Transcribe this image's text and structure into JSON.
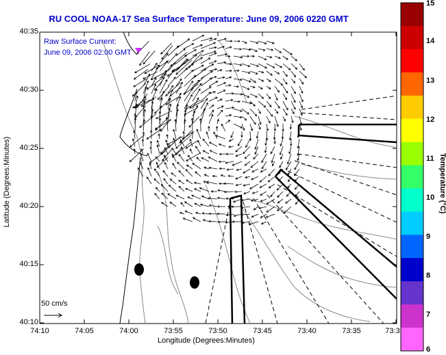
{
  "title": "RU COOL  NOAA-17  Sea Surface Temperature:  June 09, 2006 0220 GMT",
  "legend": {
    "line1": "Raw Surface Current:",
    "line2": "June 09, 2006 02:00 GMT",
    "marker_color": "#cc33ff"
  },
  "scale": {
    "label": "50 cm/s"
  },
  "axes": {
    "xlabel": "Longitude (Degrees:Minutes)",
    "ylabel": "Latitude (Degrees:Minutes)",
    "xticks": [
      "74:10",
      "74:05",
      "74:00",
      "73:55",
      "73:50",
      "73:45",
      "73:40",
      "73:35",
      "73:3"
    ],
    "yticks": [
      "40:35",
      "40:30",
      "40:25",
      "40:20",
      "40:15",
      "40:10"
    ]
  },
  "colorbar": {
    "label": "Temperature (°C)",
    "ticks": [
      "15",
      "14",
      "13",
      "12",
      "11",
      "10",
      "9",
      "8",
      "7",
      "6"
    ],
    "range": [
      6,
      15
    ],
    "colors": [
      "#ff66ff",
      "#cc33cc",
      "#6633cc",
      "#0000cc",
      "#0066ff",
      "#00ccff",
      "#00ffcc",
      "#33ff66",
      "#99ff00",
      "#ffff00",
      "#ffcc00",
      "#ff6600",
      "#ff0000",
      "#cc0000",
      "#990000"
    ]
  }
}
